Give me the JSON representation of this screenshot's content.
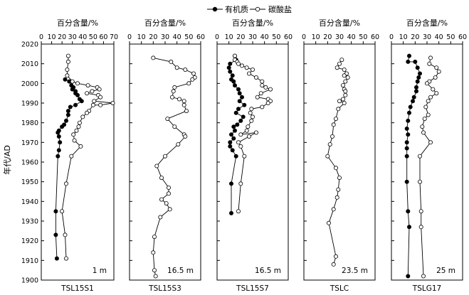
{
  "legend": {
    "organic_label": "有机质",
    "carbonate_label": "碳酸盐"
  },
  "y_axis_label": "年代/AD",
  "chart_data": [
    {
      "type": "line",
      "panel": "TSL15S1",
      "site": "TSL15S1",
      "depth": "1 m",
      "xlabel": "百分含量/%",
      "xticks": [
        "0",
        "10",
        "20",
        "30",
        "40",
        "50",
        "60",
        "70"
      ],
      "xlim": [
        0,
        70
      ],
      "ylabel": "年代/AD",
      "yticks": [
        "1900",
        "1910",
        "1920",
        "1930",
        "1940",
        "1950",
        "1960",
        "1970",
        "1980",
        "1990",
        "2000",
        "2010",
        "2020"
      ],
      "ylim": [
        1900,
        2020
      ],
      "series": [
        {
          "name": "有机质",
          "marker": "filled-circle",
          "points": [
            [
              23,
              2002
            ],
            [
              27,
              2001
            ],
            [
              29,
              1999
            ],
            [
              31,
              1998
            ],
            [
              30,
              1997
            ],
            [
              33,
              1996
            ],
            [
              33,
              1995
            ],
            [
              35,
              1994
            ],
            [
              37,
              1992
            ],
            [
              39,
              1991
            ],
            [
              33,
              1989
            ],
            [
              28,
              1988
            ],
            [
              26,
              1986
            ],
            [
              26,
              1984
            ],
            [
              24,
              1981
            ],
            [
              22,
              1979
            ],
            [
              20,
              1978
            ],
            [
              17,
              1976
            ],
            [
              16,
              1975
            ],
            [
              17,
              1973
            ],
            [
              18,
              1970
            ],
            [
              17,
              1966
            ],
            [
              16,
              1963
            ],
            [
              14,
              1935
            ],
            [
              14,
              1923
            ],
            [
              15,
              1911
            ]
          ]
        },
        {
          "name": "碳酸盐",
          "marker": "open-circle",
          "points": [
            [
              26,
              2014
            ],
            [
              26,
              2011
            ],
            [
              25,
              2007
            ],
            [
              25,
              2004
            ],
            [
              30,
              2001
            ],
            [
              35,
              2000
            ],
            [
              45,
              1999
            ],
            [
              54,
              1998
            ],
            [
              56,
              1997
            ],
            [
              49,
              1996
            ],
            [
              44,
              1995
            ],
            [
              55,
              1994
            ],
            [
              57,
              1993
            ],
            [
              51,
              1991
            ],
            [
              69,
              1990
            ],
            [
              57,
              1989
            ],
            [
              50,
              1989
            ],
            [
              46,
              1986
            ],
            [
              44,
              1985
            ],
            [
              40,
              1983
            ],
            [
              37,
              1980
            ],
            [
              36,
              1978
            ],
            [
              34,
              1976
            ],
            [
              31,
              1974
            ],
            [
              32,
              1971
            ],
            [
              38,
              1968
            ],
            [
              29,
              1963
            ],
            [
              24,
              1949
            ],
            [
              20,
              1935
            ],
            [
              23,
              1923
            ],
            [
              24,
              1911
            ]
          ]
        }
      ]
    },
    {
      "type": "line",
      "panel": "TSL15S3",
      "site": "TSL15S3",
      "depth": "16.5 m",
      "xlabel": "百分含量/%",
      "xticks": [
        "0",
        "10",
        "20",
        "30",
        "40",
        "50",
        "60"
      ],
      "xlim": [
        0,
        60
      ],
      "series": [
        {
          "name": "碳酸盐",
          "marker": "open-circle",
          "points": [
            [
              20,
              2013
            ],
            [
              35,
              2011
            ],
            [
              40,
              2008
            ],
            [
              47,
              2007
            ],
            [
              54,
              2005
            ],
            [
              55,
              2003
            ],
            [
              53,
              2002
            ],
            [
              50,
              2000
            ],
            [
              38,
              1998
            ],
            [
              37,
              1996
            ],
            [
              36,
              1993
            ],
            [
              42,
              1992
            ],
            [
              46,
              1991
            ],
            [
              46,
              1989
            ],
            [
              48,
              1986
            ],
            [
              32,
              1982
            ],
            [
              38,
              1978
            ],
            [
              46,
              1974
            ],
            [
              47,
              1973
            ],
            [
              41,
              1969
            ],
            [
              30,
              1963
            ],
            [
              23,
              1958
            ],
            [
              27,
              1952
            ],
            [
              33,
              1947
            ],
            [
              33,
              1944
            ],
            [
              27,
              1941
            ],
            [
              31,
              1939
            ],
            [
              34,
              1936
            ],
            [
              26,
              1932
            ],
            [
              21,
              1922
            ],
            [
              20,
              1914
            ],
            [
              21,
              1905
            ],
            [
              22,
              1902
            ]
          ]
        }
      ]
    },
    {
      "type": "line",
      "panel": "TSL15S7",
      "site": "TSL15S7",
      "depth": "16.5 m",
      "xlabel": "百分含量/%",
      "xticks": [
        "0",
        "10",
        "20",
        "30",
        "40",
        "50",
        "60"
      ],
      "xlim": [
        0,
        60
      ],
      "series": [
        {
          "name": "有机质",
          "marker": "filled-circle",
          "points": [
            [
              15,
              2014
            ],
            [
              16,
              2012
            ],
            [
              11,
              2010
            ],
            [
              10,
              2008
            ],
            [
              11,
              2006
            ],
            [
              13,
              2004
            ],
            [
              12,
              2002
            ],
            [
              14,
              2001
            ],
            [
              15,
              1999
            ],
            [
              18,
              1997
            ],
            [
              19,
              1995
            ],
            [
              21,
              1993
            ],
            [
              19,
              1991
            ],
            [
              23,
              1989
            ],
            [
              18,
              1987
            ],
            [
              16,
              1985
            ],
            [
              22,
              1983
            ],
            [
              20,
              1981
            ],
            [
              17,
              1979
            ],
            [
              14,
              1978
            ],
            [
              15,
              1976
            ],
            [
              12,
              1974
            ],
            [
              14,
              1972
            ],
            [
              11,
              1970
            ],
            [
              11,
              1968
            ],
            [
              13,
              1966
            ],
            [
              16,
              1963
            ],
            [
              12,
              1949
            ],
            [
              12,
              1934
            ]
          ]
        },
        {
          "name": "碳酸盐",
          "marker": "open-circle",
          "points": [
            [
              15,
              2014
            ],
            [
              15,
              2012
            ],
            [
              17,
              2011
            ],
            [
              18,
              2010
            ],
            [
              21,
              2009
            ],
            [
              25,
              2008
            ],
            [
              30,
              2007
            ],
            [
              27,
              2005
            ],
            [
              33,
              2003
            ],
            [
              38,
              2001
            ],
            [
              38,
              1999
            ],
            [
              41,
              1998
            ],
            [
              45,
              1997
            ],
            [
              37,
              1995
            ],
            [
              34,
              1993
            ],
            [
              43,
              1992
            ],
            [
              45,
              1991
            ],
            [
              43,
              1990
            ],
            [
              38,
              1988
            ],
            [
              29,
              1987
            ],
            [
              28,
              1985
            ],
            [
              30,
              1983
            ],
            [
              29,
              1981
            ],
            [
              26,
              1978
            ],
            [
              25,
              1976
            ],
            [
              20,
              1974
            ],
            [
              33,
              1975
            ],
            [
              27,
              1973
            ],
            [
              18,
              1970
            ],
            [
              20,
              1968
            ],
            [
              23,
              1963
            ],
            [
              20,
              1949
            ],
            [
              18,
              1935
            ]
          ]
        }
      ]
    },
    {
      "type": "line",
      "panel": "TSLC",
      "site": "TSLC",
      "depth": "23.5 m",
      "xlabel": "百分含量/%",
      "xticks": [
        "0",
        "10",
        "20",
        "30",
        "40",
        "50",
        "60"
      ],
      "xlim": [
        0,
        60
      ],
      "series": [
        {
          "name": "碳酸盐",
          "marker": "open-circle",
          "points": [
            [
              32,
              2012
            ],
            [
              30,
              2010
            ],
            [
              28,
              2008
            ],
            [
              34,
              2007
            ],
            [
              36,
              2005
            ],
            [
              34,
              2004
            ],
            [
              37,
              2003
            ],
            [
              35,
              2001
            ],
            [
              33,
              1999
            ],
            [
              34,
              1997
            ],
            [
              35,
              1996
            ],
            [
              35,
              1994
            ],
            [
              33,
              1992
            ],
            [
              30,
              1991
            ],
            [
              34,
              1990
            ],
            [
              29,
              1987
            ],
            [
              27,
              1982
            ],
            [
              25,
              1979
            ],
            [
              24,
              1973
            ],
            [
              22,
              1969
            ],
            [
              20,
              1963
            ],
            [
              27,
              1957
            ],
            [
              30,
              1952
            ],
            [
              29,
              1946
            ],
            [
              28,
              1942
            ],
            [
              25,
              1936
            ],
            [
              21,
              1929
            ],
            [
              27,
              1912
            ],
            [
              25,
              1908
            ]
          ]
        }
      ]
    },
    {
      "type": "line",
      "panel": "TSLG17",
      "site": "TSLG17",
      "depth": "25 m",
      "xlabel": "百分含量/%",
      "xticks": [
        "0",
        "10",
        "20",
        "30",
        "40",
        "50",
        "60"
      ],
      "xlim": [
        0,
        60
      ],
      "series": [
        {
          "name": "有机质",
          "marker": "filled-circle",
          "points": [
            [
              15,
              2014
            ],
            [
              14,
              2011
            ],
            [
              20,
              2011
            ],
            [
              22,
              2008
            ],
            [
              24,
              2005
            ],
            [
              23,
              2003
            ],
            [
              22,
              2001
            ],
            [
              21,
              1998
            ],
            [
              21,
              1996
            ],
            [
              19,
              1993
            ],
            [
              18,
              1991
            ],
            [
              16,
              1988
            ],
            [
              15,
              1985
            ],
            [
              14,
              1981
            ],
            [
              13,
              1977
            ],
            [
              14,
              1974
            ],
            [
              13,
              1970
            ],
            [
              13,
              1967
            ],
            [
              13,
              1963
            ],
            [
              13,
              1950
            ],
            [
              14,
              1935
            ],
            [
              15,
              1927
            ],
            [
              14,
              1902
            ]
          ]
        },
        {
          "name": "碳酸盐",
          "marker": "open-circle",
          "points": [
            [
              33,
              2013
            ],
            [
              32,
              2010
            ],
            [
              38,
              2008
            ],
            [
              40,
              2006
            ],
            [
              37,
              2003
            ],
            [
              32,
              2001
            ],
            [
              30,
              2000
            ],
            [
              35,
              1997
            ],
            [
              38,
              1995
            ],
            [
              33,
              1993
            ],
            [
              31,
              1991
            ],
            [
              29,
              1988
            ],
            [
              31,
              1984
            ],
            [
              28,
              1982
            ],
            [
              26,
              1978
            ],
            [
              27,
              1975
            ],
            [
              33,
              1970
            ],
            [
              24,
              1963
            ],
            [
              24,
              1950
            ],
            [
              25,
              1935
            ],
            [
              25,
              1927
            ],
            [
              27,
              1902
            ]
          ]
        }
      ]
    }
  ]
}
